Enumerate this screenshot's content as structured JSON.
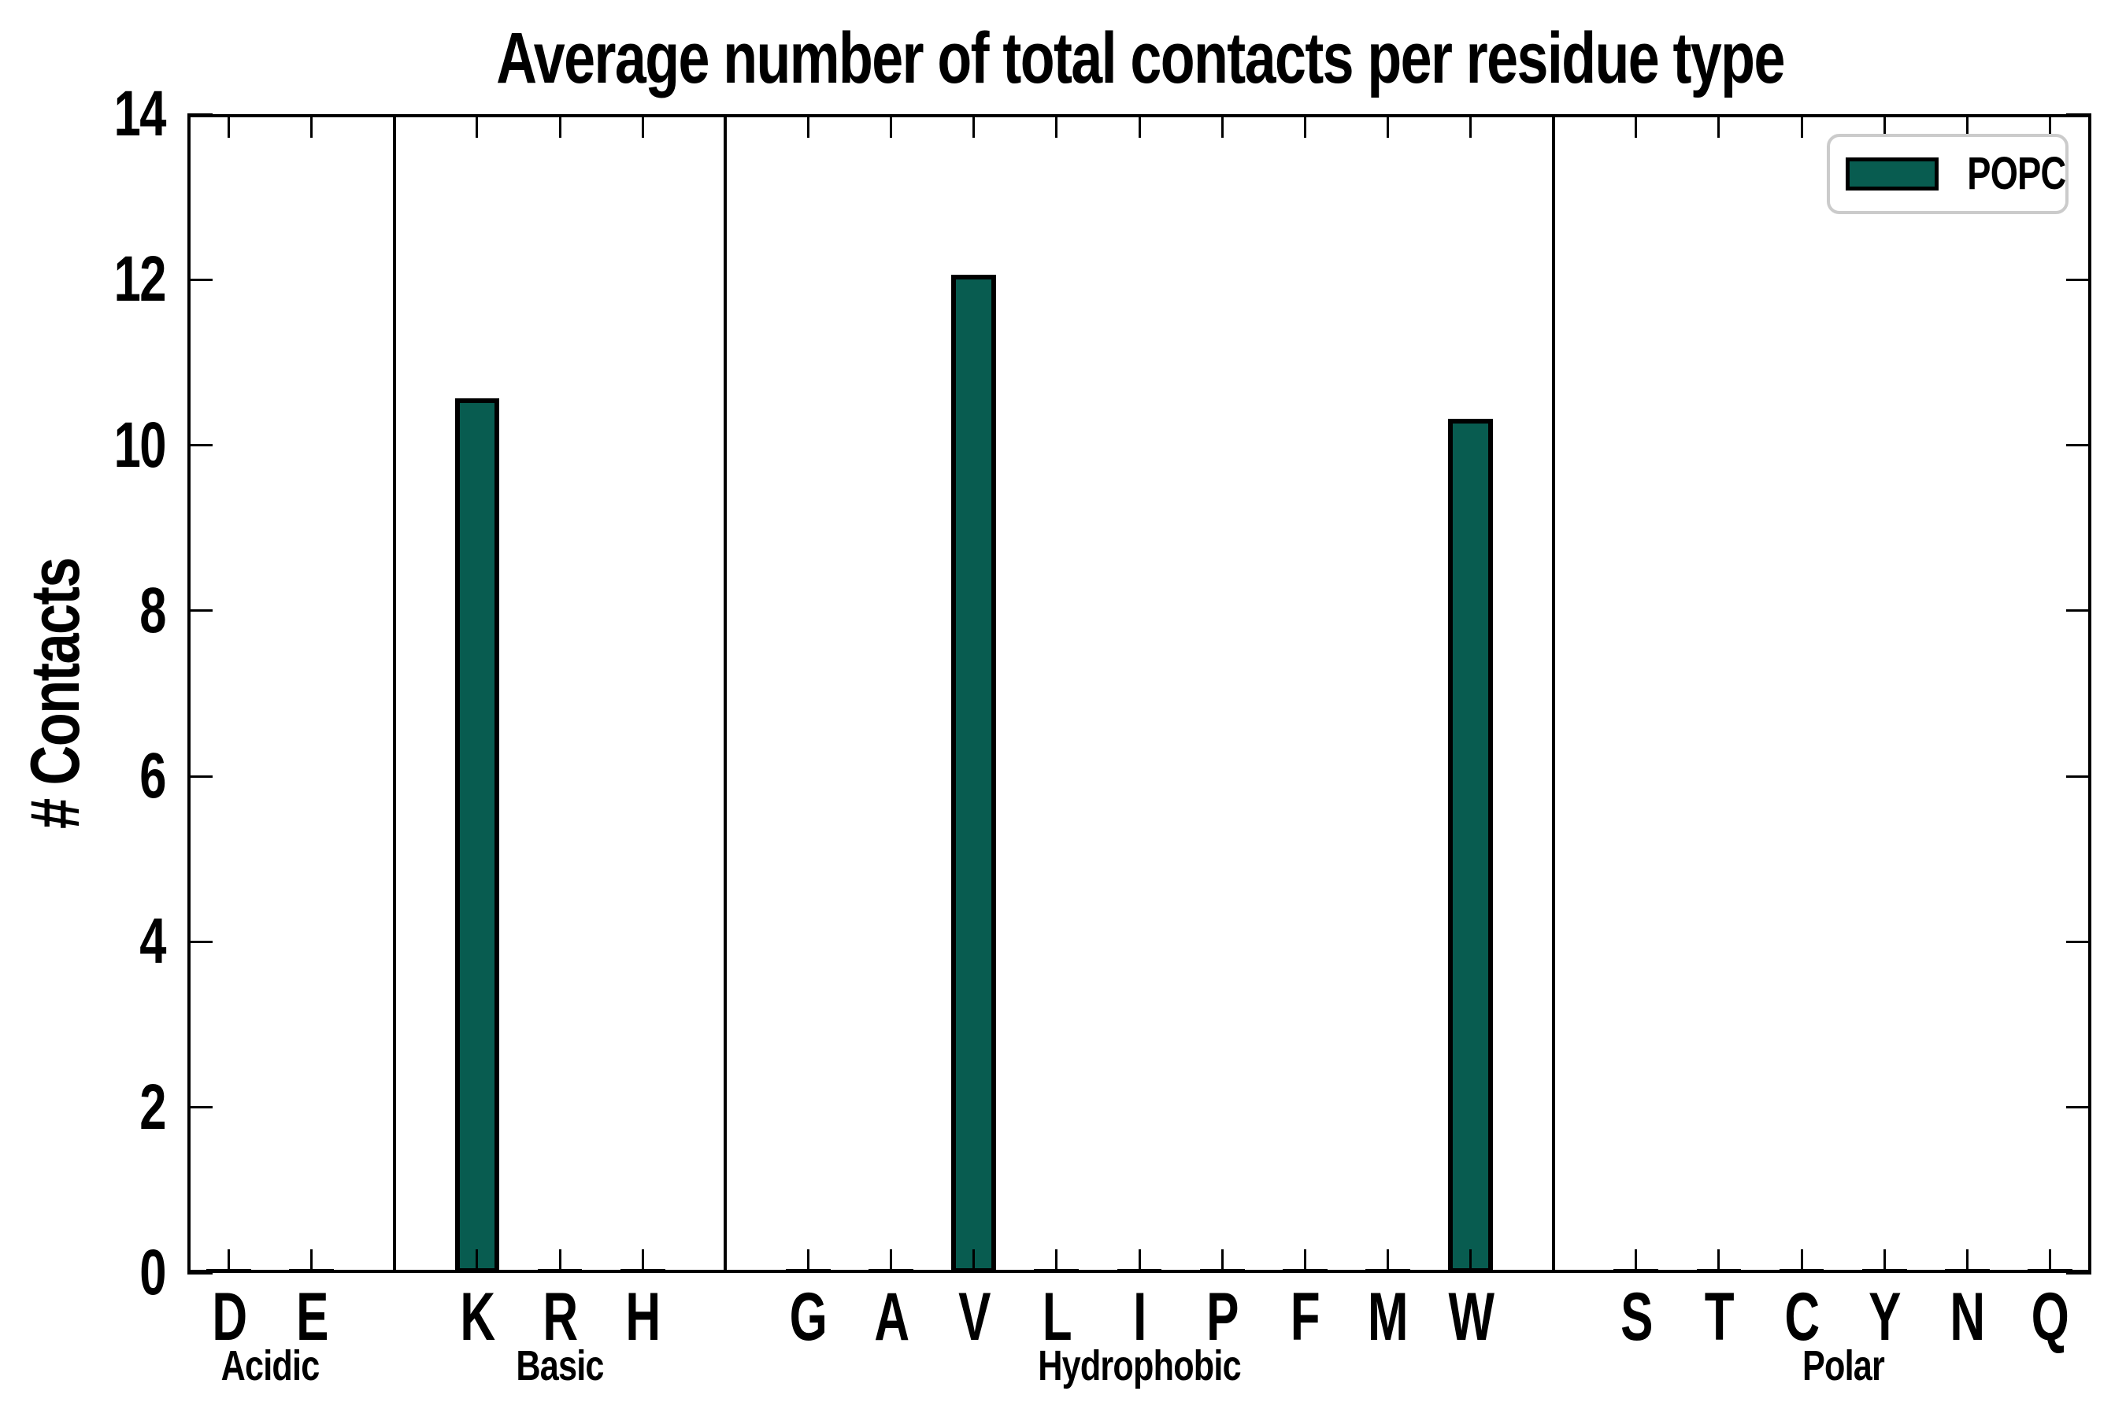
{
  "chart_data": {
    "type": "bar",
    "title": "Average number of total contacts per residue type",
    "xlabel": "",
    "ylabel": "# Contacts",
    "ylim": [
      0,
      14
    ],
    "yticks": [
      0,
      2,
      4,
      6,
      8,
      10,
      12,
      14
    ],
    "grid": false,
    "legend_position": "upper right",
    "legend": [
      "POPC"
    ],
    "series_name": "POPC",
    "groups": [
      {
        "label": "Acidic",
        "categories": [
          "D",
          "E"
        ],
        "values": [
          0.05,
          0.05
        ]
      },
      {
        "label": "Basic",
        "categories": [
          "K",
          "R",
          "H"
        ],
        "values": [
          10.57,
          0.05,
          0.05
        ]
      },
      {
        "label": "Hydrophobic",
        "categories": [
          "G",
          "A",
          "V",
          "L",
          "I",
          "P",
          "F",
          "M",
          "W"
        ],
        "values": [
          0.05,
          0.05,
          12.06,
          0.05,
          0.05,
          0.05,
          0.05,
          0.05,
          10.32
        ]
      },
      {
        "label": "Polar",
        "categories": [
          "S",
          "T",
          "C",
          "Y",
          "N",
          "Q"
        ],
        "values": [
          0.05,
          0.05,
          0.05,
          0.05,
          0.05,
          0.05
        ]
      }
    ],
    "colors": {
      "bar_fill": "#085c50",
      "bar_edge": "#000000",
      "axis": "#000000",
      "legend_border": "#cbcbcb",
      "background": "#ffffff"
    },
    "bar_width_fraction": 0.54,
    "group_divider": "vertical black line between groups"
  }
}
